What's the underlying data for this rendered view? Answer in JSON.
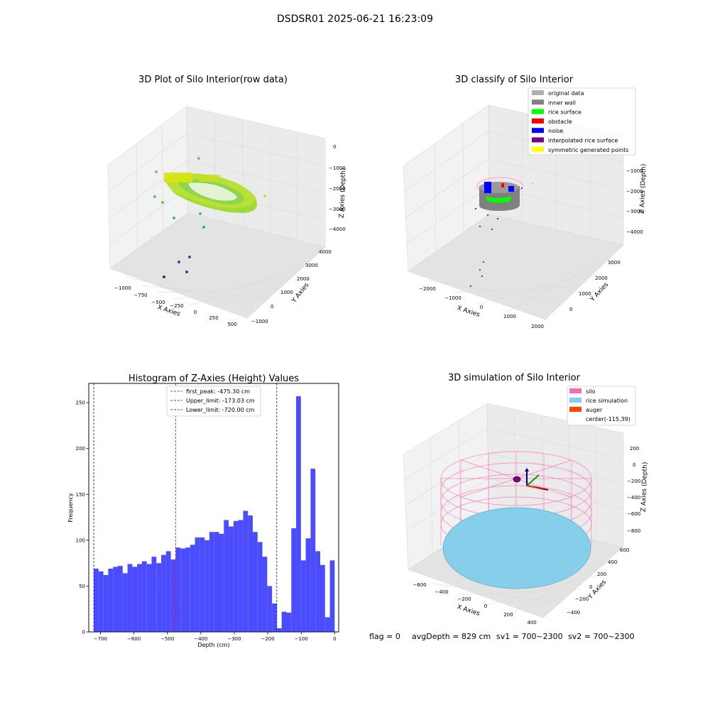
{
  "suptitle": "DSDSR01 2025-06-21 16:23:09",
  "colors": {
    "grid": "#d9d9d9",
    "pane_left": "#f2f2f2",
    "pane_right": "#ebebeb",
    "pane_floor": "#e3e3e3",
    "hist_bar": "#4c4cff",
    "first_peak": "#ff0000",
    "limit": "#0000ff"
  },
  "panels": {
    "raw": {
      "title": "3D Plot of Silo Interior(row data)",
      "x_label": "X Axies",
      "y_label": "Y Axies",
      "z_label": "Z Axies (Depth)",
      "x_ticks": [
        "−1000",
        "−750",
        "−500",
        "−250",
        "0",
        "250",
        "500"
      ],
      "y_ticks": [
        "−1000",
        "0",
        "1000",
        "2000",
        "3000",
        "4000"
      ],
      "z_ticks": [
        "0",
        "−1000",
        "−2000",
        "−3000",
        "−4000"
      ]
    },
    "classify": {
      "title": "3D classify of Silo Interior",
      "x_label": "X Axies",
      "y_label": "Y Axies",
      "z_label": "Z Axies (Depth)",
      "x_ticks": [
        "−2000",
        "−1000",
        "0",
        "1000",
        "2000"
      ],
      "y_ticks": [
        "0",
        "1000",
        "2000",
        "3000"
      ],
      "z_ticks": [
        "−1000",
        "−2000",
        "−3000",
        "−4000"
      ],
      "legend": [
        {
          "label": "original data",
          "color": "#b0b0b0"
        },
        {
          "label": "inner wall",
          "color": "#808080"
        },
        {
          "label": "rice surface",
          "color": "#00ff00"
        },
        {
          "label": "obstacle",
          "color": "#ff0000"
        },
        {
          "label": "noise",
          "color": "#0000ff"
        },
        {
          "label": "interpolated rice surface",
          "color": "#800080"
        },
        {
          "label": "symmetric generated points",
          "color": "#ffff00"
        }
      ]
    },
    "simulation": {
      "title": "3D simulation of Silo Interior",
      "x_label": "X Axies",
      "y_label": "Y Axies",
      "z_label": "Z Axies (Depth)",
      "x_ticks": [
        "−600",
        "−400",
        "−200",
        "0",
        "200",
        "400"
      ],
      "y_ticks": [
        "−400",
        "−200",
        "0",
        "200",
        "400",
        "600"
      ],
      "z_ticks": [
        "200",
        "0",
        "−200",
        "−400",
        "−600",
        "−800"
      ],
      "legend": [
        {
          "label": "silo",
          "color": "#ff69b4"
        },
        {
          "label": "rice simulation",
          "color": "#87ceeb"
        },
        {
          "label": "auger",
          "color": "#ff4500"
        },
        {
          "label": "center(-115,39)",
          "color": ""
        }
      ]
    }
  },
  "status": {
    "flag": "flag = 0",
    "avg_depth": "avgDepth = 829 cm",
    "sv1": "sv1 = 700~2300",
    "sv2": "sv2 = 700~2300"
  },
  "chart_data": {
    "type": "bar",
    "title": "Histogram of Z-Axies (Height) Values",
    "xlabel": "Depth (cm)",
    "ylabel": "Frequency",
    "xlim": [
      -735,
      12
    ],
    "ylim": [
      0,
      271
    ],
    "x_ticks": [
      -700,
      -600,
      -500,
      -400,
      -300,
      -200,
      -100,
      0
    ],
    "x_tick_labels": [
      "−700",
      "−600",
      "−500",
      "−400",
      "−300",
      "−200",
      "−100",
      "0"
    ],
    "y_ticks": [
      0,
      50,
      100,
      150,
      200,
      250
    ],
    "y_tick_labels": [
      "0",
      "50",
      "100",
      "150",
      "200",
      "250"
    ],
    "bin_start": -720,
    "bin_width": 14.4,
    "counts": [
      69,
      66,
      62,
      69,
      71,
      72,
      64,
      74,
      71,
      74,
      77,
      74,
      82,
      75,
      84,
      88,
      79,
      92,
      91,
      92,
      95,
      103,
      103,
      100,
      109,
      109,
      107,
      122,
      115,
      121,
      122,
      132,
      127,
      109,
      98,
      82,
      50,
      31,
      4,
      22,
      21,
      113,
      257,
      78,
      102,
      178,
      88,
      73,
      16,
      78
    ],
    "vlines": [
      {
        "x": -475.3,
        "label": "first_peak: -475.30 cm",
        "color": "#ff0000"
      },
      {
        "x": -173.03,
        "label": "Upper_limit: -173.03 cm",
        "color": "#0000ff"
      },
      {
        "x": -720.0,
        "label": "Lower_limit: -720.00 cm",
        "color": "#0000ff"
      }
    ],
    "legend_position": "upper-center"
  }
}
